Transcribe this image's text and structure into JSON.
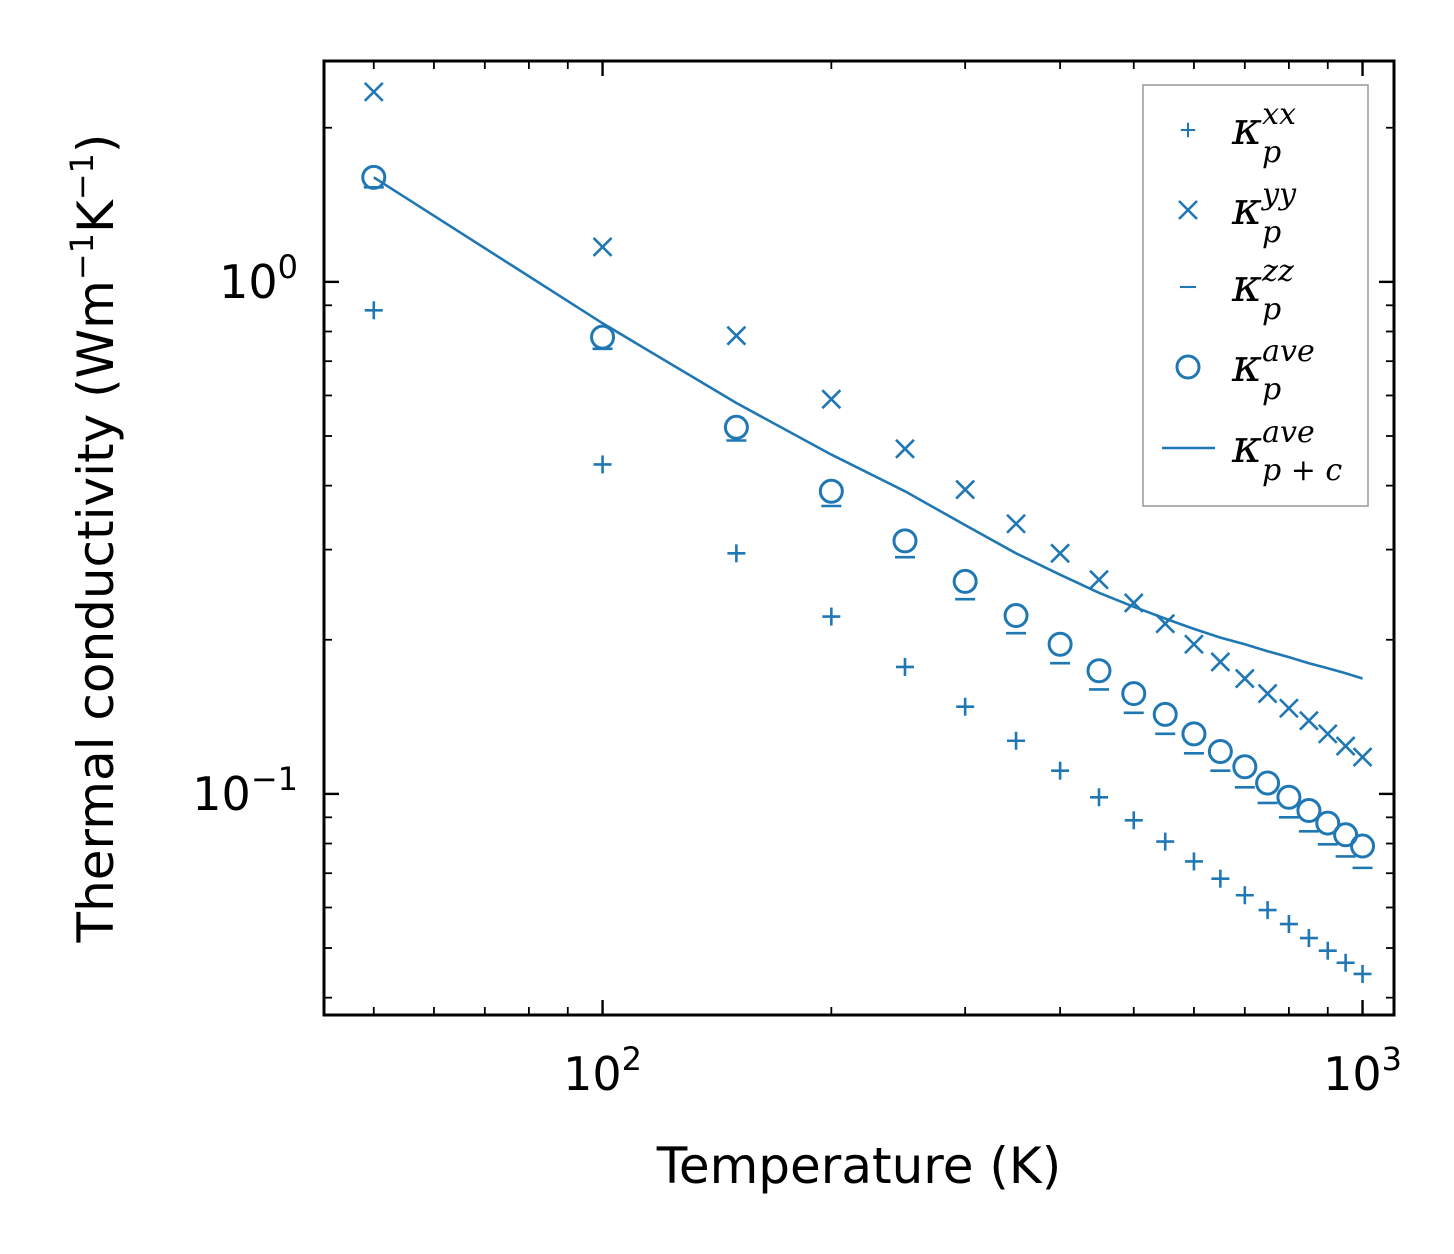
{
  "chart_data": {
    "type": "scatter",
    "xlabel": "Temperature (K)",
    "ylabel_parts": [
      "Thermal conductivity (Wm",
      "−1",
      "K",
      "−1",
      ")"
    ],
    "xscale": "log",
    "yscale": "log",
    "xlim": [
      43,
      1100
    ],
    "ylim": [
      0.037,
      2.7
    ],
    "x_ticks": [
      {
        "value": 100,
        "base": "10",
        "exp": "2"
      },
      {
        "value": 1000,
        "base": "10",
        "exp": "3"
      }
    ],
    "y_ticks": [
      {
        "value": 1,
        "base": "10",
        "exp": "0"
      },
      {
        "value": 0.1,
        "base": "10",
        "exp": "−1"
      }
    ],
    "color": "#1f77b4",
    "legend_position": "top-right",
    "x": [
      50,
      100,
      150,
      200,
      250,
      300,
      350,
      400,
      450,
      500,
      550,
      600,
      650,
      700,
      750,
      800,
      850,
      900,
      950,
      1000
    ],
    "series": [
      {
        "name": "kappa_p^xx",
        "marker": "plus",
        "values": [
          0.88,
          0.44,
          0.295,
          0.222,
          0.177,
          0.148,
          0.127,
          0.111,
          0.0985,
          0.0888,
          0.0807,
          0.0738,
          0.0683,
          0.0634,
          0.0593,
          0.0557,
          0.0523,
          0.0494,
          0.0468,
          0.0445
        ]
      },
      {
        "name": "kappa_p^yy",
        "marker": "x",
        "values": [
          2.35,
          1.17,
          0.785,
          0.59,
          0.472,
          0.393,
          0.337,
          0.295,
          0.262,
          0.236,
          0.215,
          0.196,
          0.181,
          0.168,
          0.157,
          0.147,
          0.139,
          0.131,
          0.124,
          0.118
        ]
      },
      {
        "name": "kappa_p^zz",
        "marker": "hline",
        "values": [
          1.53,
          0.74,
          0.49,
          0.365,
          0.29,
          0.24,
          0.206,
          0.18,
          0.16,
          0.144,
          0.131,
          0.12,
          0.111,
          0.103,
          0.096,
          0.09,
          0.0845,
          0.0797,
          0.0755,
          0.0717
        ]
      },
      {
        "name": "kappa_p^ave",
        "marker": "circle",
        "values": [
          1.6,
          0.78,
          0.52,
          0.39,
          0.312,
          0.26,
          0.223,
          0.196,
          0.174,
          0.157,
          0.143,
          0.131,
          0.121,
          0.113,
          0.105,
          0.0985,
          0.0928,
          0.0877,
          0.0832,
          0.0791
        ]
      },
      {
        "name": "kappa_p+c^ave",
        "marker": "line",
        "values": [
          1.6,
          0.83,
          0.58,
          0.46,
          0.39,
          0.335,
          0.295,
          0.268,
          0.247,
          0.232,
          0.22,
          0.21,
          0.202,
          0.196,
          0.19,
          0.185,
          0.18,
          0.176,
          0.172,
          0.168
        ]
      }
    ],
    "legend": [
      {
        "marker": "plus",
        "symbol": "κ",
        "sub": "p",
        "sup": "xx"
      },
      {
        "marker": "x",
        "symbol": "κ",
        "sub": "p",
        "sup": "yy"
      },
      {
        "marker": "hline",
        "symbol": "κ",
        "sub": "p",
        "sup": "zz"
      },
      {
        "marker": "circle",
        "symbol": "κ",
        "sub": "p",
        "sup": "ave"
      },
      {
        "marker": "line",
        "symbol": "κ",
        "sub": "p + c",
        "sup": "ave"
      }
    ]
  }
}
